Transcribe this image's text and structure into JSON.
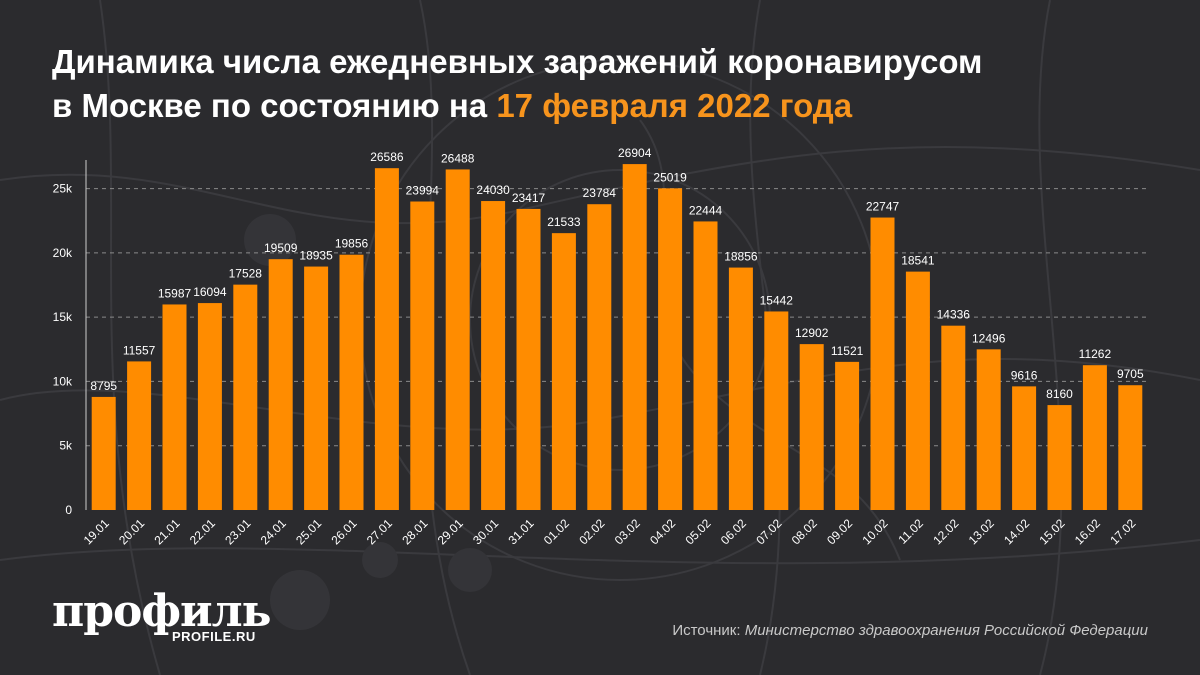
{
  "title": {
    "line1": "Динамика числа ежедневных заражений коронавирусом",
    "line2_prefix": "в Москве по состоянию на ",
    "line2_highlight": "17 февраля 2022 года"
  },
  "colors": {
    "background": "#2b2b2e",
    "bar": "#ff8c00",
    "highlight": "#f7941d",
    "text": "#ffffff",
    "grid": "#8a8a8a"
  },
  "chart_data": {
    "type": "bar",
    "categories": [
      "19.01",
      "20.01",
      "21.01",
      "22.01",
      "23.01",
      "24.01",
      "25.01",
      "26.01",
      "27.01",
      "28.01",
      "29.01",
      "30.01",
      "31.01",
      "01.02",
      "02.02",
      "03.02",
      "04.02",
      "05.02",
      "06.02",
      "07.02",
      "08.02",
      "09.02",
      "10.02",
      "11.02",
      "12.02",
      "13.02",
      "14.02",
      "15.02",
      "16.02",
      "17.02"
    ],
    "values": [
      8795,
      11557,
      15987,
      16094,
      17528,
      19509,
      18935,
      19856,
      26586,
      23994,
      26488,
      24030,
      23417,
      21533,
      23784,
      26904,
      25019,
      22444,
      18856,
      15442,
      12902,
      11521,
      22747,
      18541,
      14336,
      12496,
      9616,
      8160,
      11262,
      9705
    ],
    "ylim": [
      0,
      28000
    ],
    "yticks": [
      0,
      5000,
      10000,
      15000,
      20000,
      25000
    ],
    "ytick_labels": [
      "0",
      "5k",
      "10k",
      "15k",
      "20k",
      "25k"
    ],
    "grid": true,
    "data_labels": true
  },
  "brand": {
    "logo": "профиль",
    "site": "PROFILE.RU"
  },
  "source": {
    "label": "Источник: ",
    "value": "Министерство здравоохранения Российской Федерации"
  }
}
